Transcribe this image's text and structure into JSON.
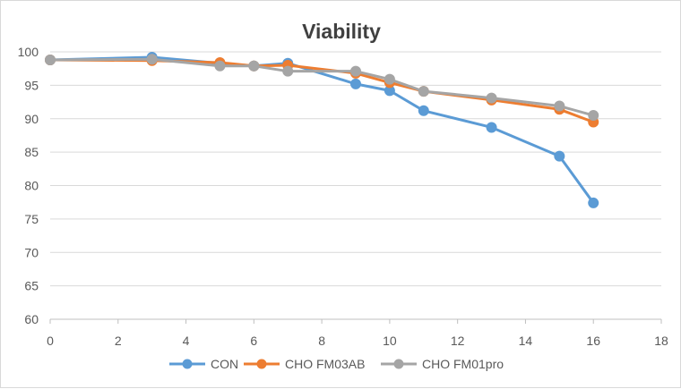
{
  "chart_data": {
    "type": "line",
    "title": "Viability",
    "xlabel": "",
    "ylabel": "",
    "xlim": [
      0,
      18
    ],
    "ylim": [
      60,
      100
    ],
    "xticks": [
      0,
      2,
      4,
      6,
      8,
      10,
      12,
      14,
      16,
      18
    ],
    "yticks": [
      60,
      65,
      70,
      75,
      80,
      85,
      90,
      95,
      100
    ],
    "grid": "horizontal",
    "legend_position": "bottom",
    "series": [
      {
        "name": "CON",
        "color": "#5b9bd5",
        "x": [
          0,
          3,
          5,
          6,
          7,
          9,
          10,
          11,
          13,
          15,
          16
        ],
        "y": [
          98.8,
          99.2,
          98.3,
          97.9,
          98.3,
          95.2,
          94.2,
          91.2,
          88.7,
          84.4,
          77.4
        ]
      },
      {
        "name": "CHO FM03AB",
        "color": "#ed7d31",
        "x": [
          0,
          3,
          5,
          6,
          7,
          9,
          10,
          11,
          13,
          15,
          16
        ],
        "y": [
          98.8,
          98.7,
          98.4,
          97.9,
          98.0,
          96.8,
          95.4,
          94.1,
          92.8,
          91.4,
          89.5
        ]
      },
      {
        "name": "CHO FM01pro",
        "color": "#a5a5a5",
        "x": [
          0,
          3,
          5,
          6,
          7,
          9,
          10,
          11,
          13,
          15,
          16
        ],
        "y": [
          98.8,
          98.9,
          97.9,
          97.9,
          97.1,
          97.1,
          95.9,
          94.1,
          93.1,
          91.9,
          90.5
        ]
      }
    ]
  }
}
